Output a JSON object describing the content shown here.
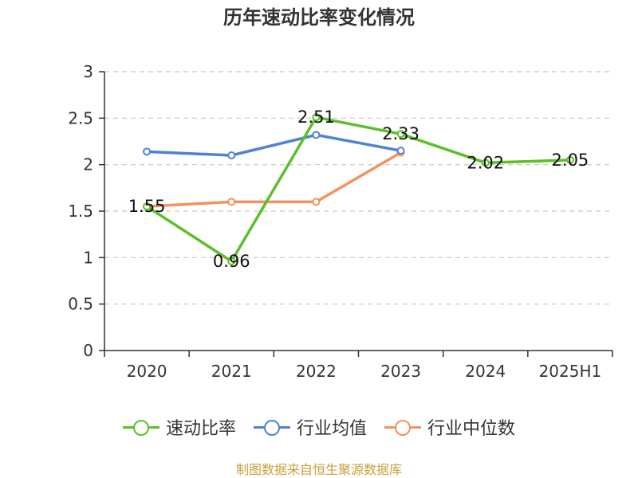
{
  "title": "历年速动比率变化情况",
  "source": "制图数据来自恒生聚源数据库",
  "chart_data": {
    "type": "line",
    "categories": [
      "2020",
      "2021",
      "2022",
      "2023",
      "2024",
      "2025H1"
    ],
    "ylim": [
      0,
      3
    ],
    "yticks": [
      "0",
      "0.5",
      "1",
      "1.5",
      "2",
      "2.5",
      "3"
    ],
    "grid": true,
    "legend_position": "bottom",
    "series": [
      {
        "name": "速动比率",
        "color": "#5cbf27",
        "values": [
          1.55,
          0.96,
          2.51,
          2.33,
          2.02,
          2.05
        ],
        "labels": [
          "1.55",
          "0.96",
          "2.51",
          "2.33",
          "2.02",
          "2.05"
        ]
      },
      {
        "name": "行业均值",
        "color": "#4f81d4",
        "values": [
          2.14,
          2.1,
          2.32,
          2.15,
          null,
          null
        ]
      },
      {
        "name": "行业中位数",
        "color": "#f5915f",
        "values": [
          1.55,
          1.6,
          1.6,
          2.13,
          null,
          null
        ]
      }
    ]
  }
}
